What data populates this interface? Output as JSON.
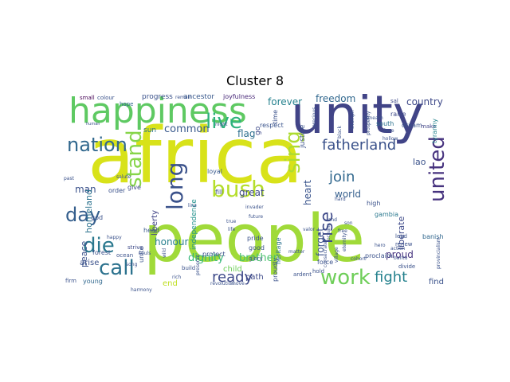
{
  "figure": {
    "title": "Cluster 8"
  },
  "wordcloud": {
    "words": [
      {
        "text": "africa",
        "color": "#d8e219"
      },
      {
        "text": "people",
        "color": "#a0da39"
      },
      {
        "text": "unity",
        "color": "#414487"
      },
      {
        "text": "happiness",
        "color": "#5ec962"
      },
      {
        "text": "nation",
        "color": "#31688e"
      },
      {
        "text": "die",
        "color": "#2a788e"
      },
      {
        "text": "stand",
        "color": "#86d549"
      },
      {
        "text": "bush",
        "color": "#b5de2b"
      },
      {
        "text": "long",
        "color": "#3b528b"
      },
      {
        "text": "live",
        "color": "#2db27d"
      },
      {
        "text": "sing",
        "color": "#addc30"
      },
      {
        "text": "day",
        "color": "#355f8d"
      },
      {
        "text": "call",
        "color": "#2c728e"
      },
      {
        "text": "united",
        "color": "#46327e"
      },
      {
        "text": "work",
        "color": "#6ece58"
      },
      {
        "text": "fight",
        "color": "#26828e"
      },
      {
        "text": "ready",
        "color": "#3e4a89"
      },
      {
        "text": "rise",
        "color": "#3e4989"
      },
      {
        "text": "join",
        "color": "#31688e"
      },
      {
        "text": "fatherland",
        "color": "#3b528b"
      },
      {
        "text": "dignity",
        "color": "#35b779"
      },
      {
        "text": "brother",
        "color": "#4ac16d"
      },
      {
        "text": "country",
        "color": "#3e4989"
      },
      {
        "text": "freedom",
        "color": "#31688e"
      },
      {
        "text": "forever",
        "color": "#26828e"
      },
      {
        "text": "common",
        "color": "#38598c"
      },
      {
        "text": "flag",
        "color": "#2e6f8e"
      },
      {
        "text": "honour",
        "color": "#277f8e"
      },
      {
        "text": "man",
        "color": "#3b528b"
      },
      {
        "text": "great",
        "color": "#3e4a89"
      },
      {
        "text": "heart",
        "color": "#3a548c"
      },
      {
        "text": "world",
        "color": "#355f8d"
      },
      {
        "text": "forget",
        "color": "#3b528b"
      },
      {
        "text": "proud",
        "color": "#46337f"
      },
      {
        "text": "lao",
        "color": "#3b528b"
      },
      {
        "text": "liberate",
        "color": "#3e4a89"
      },
      {
        "text": "peace",
        "color": "#3b528b"
      },
      {
        "text": "homeland",
        "color": "#2c728e"
      },
      {
        "text": "arise",
        "color": "#3b528b"
      },
      {
        "text": "liberty",
        "color": "#414487"
      },
      {
        "text": "child",
        "color": "#6ece58"
      },
      {
        "text": "path",
        "color": "#3e4a89"
      },
      {
        "text": "end",
        "color": "#c0df25"
      },
      {
        "text": "find",
        "color": "#3b528b"
      },
      {
        "text": "banish",
        "color": "#31688e"
      },
      {
        "text": "independence",
        "color": "#21918c"
      },
      {
        "text": "sun",
        "color": "#2c728e"
      },
      {
        "text": "progress",
        "color": "#3b528b"
      },
      {
        "text": "ancestor",
        "color": "#38598c"
      },
      {
        "text": "joyfulness",
        "color": "#482878"
      },
      {
        "text": "hope",
        "color": "#31688e"
      },
      {
        "text": "colour",
        "color": "#3b528b"
      },
      {
        "text": "small",
        "color": "#440154"
      },
      {
        "text": "loyal",
        "color": "#38598c"
      },
      {
        "text": "go",
        "color": "#3e4989"
      },
      {
        "text": "time",
        "color": "#3b528b"
      },
      {
        "text": "respect",
        "color": "#3a548c"
      },
      {
        "text": "justice",
        "color": "#3b528b"
      },
      {
        "text": "raise",
        "color": "#3e4a89"
      },
      {
        "text": "south",
        "color": "#2c728e"
      },
      {
        "text": "dream",
        "color": "#3b528b"
      },
      {
        "text": "sal",
        "color": "#3e4a89"
      },
      {
        "text": "make",
        "color": "#414487"
      },
      {
        "text": "tyranny",
        "color": "#25848e"
      },
      {
        "text": "order",
        "color": "#3b528b"
      },
      {
        "text": "give",
        "color": "#3e4a89"
      },
      {
        "text": "salute",
        "color": "#3b528b"
      },
      {
        "text": "fill",
        "color": "#3b528b"
      },
      {
        "text": "high",
        "color": "#3b528b"
      },
      {
        "text": "gambia",
        "color": "#2a788e"
      },
      {
        "text": "god",
        "color": "#3b528b"
      },
      {
        "text": "head",
        "color": "#38598c"
      },
      {
        "text": "forest",
        "color": "#3b528b"
      },
      {
        "text": "strive",
        "color": "#3e4a89"
      },
      {
        "text": "ocean",
        "color": "#3b528b"
      },
      {
        "text": "unite",
        "color": "#3b528b"
      },
      {
        "text": "young",
        "color": "#31688e"
      },
      {
        "text": "firm",
        "color": "#3b528b"
      },
      {
        "text": "protect",
        "color": "#3b528b"
      },
      {
        "text": "pride",
        "color": "#3b528b"
      },
      {
        "text": "good",
        "color": "#3b528b"
      },
      {
        "text": "glory",
        "color": "#3b528b"
      },
      {
        "text": "heritage",
        "color": "#2c728e"
      },
      {
        "text": "build",
        "color": "#3b528b"
      },
      {
        "text": "proudly",
        "color": "#3b528b"
      },
      {
        "text": "ardent",
        "color": "#3b528b"
      },
      {
        "text": "force",
        "color": "#3b528b"
      },
      {
        "text": "hold",
        "color": "#3b528b"
      },
      {
        "text": "proclaim",
        "color": "#3b528b"
      },
      {
        "text": "lead",
        "color": "#3b528b"
      },
      {
        "text": "renew",
        "color": "#3b528b"
      },
      {
        "text": "action",
        "color": "#3b528b"
      },
      {
        "text": "divide",
        "color": "#3b528b"
      },
      {
        "text": "bantu",
        "color": "#3b528b"
      },
      {
        "text": "cohort",
        "color": "#3b528b"
      },
      {
        "text": "matter",
        "color": "#3b528b"
      },
      {
        "text": "hero",
        "color": "#3b528b"
      },
      {
        "text": "son",
        "color": "#3b528b"
      },
      {
        "text": "land",
        "color": "#3b528b"
      },
      {
        "text": "move",
        "color": "#3b528b"
      },
      {
        "text": "revolution",
        "color": "#3b528b"
      },
      {
        "text": "true",
        "color": "#3b528b"
      },
      {
        "text": "life",
        "color": "#3b528b"
      },
      {
        "text": "line",
        "color": "#3b528b"
      },
      {
        "text": "future",
        "color": "#3b528b"
      },
      {
        "text": "invader",
        "color": "#3b528b"
      },
      {
        "text": "souls",
        "color": "#3b528b"
      },
      {
        "text": "song",
        "color": "#3b528b"
      },
      {
        "text": "rich",
        "color": "#3b528b"
      },
      {
        "text": "past",
        "color": "#3b528b"
      },
      {
        "text": "happy",
        "color": "#3b528b"
      },
      {
        "text": "oceans",
        "color": "#3b528b"
      },
      {
        "text": "village",
        "color": "#3b528b"
      },
      {
        "text": "eternity",
        "color": "#3b528b"
      },
      {
        "text": "beneath",
        "color": "#3b528b"
      },
      {
        "text": "love",
        "color": "#3b528b"
      },
      {
        "text": "hollow",
        "color": "#3b528b"
      },
      {
        "text": "prosperity",
        "color": "#3b528b"
      },
      {
        "text": "triumph",
        "color": "#3b528b"
      },
      {
        "text": "black",
        "color": "#3b528b"
      },
      {
        "text": "today",
        "color": "#3b528b"
      },
      {
        "text": "valor",
        "color": "#3b528b"
      },
      {
        "text": "free",
        "color": "#3b528b"
      },
      {
        "text": "hard",
        "color": "#3b528b"
      },
      {
        "text": "night",
        "color": "#3b528b"
      },
      {
        "text": "human",
        "color": "#3b528b"
      },
      {
        "text": "wild",
        "color": "#3b528b"
      },
      {
        "text": "preserve",
        "color": "#3b528b"
      },
      {
        "text": "consecrate",
        "color": "#3b528b"
      },
      {
        "text": "precious",
        "color": "#3b528b"
      },
      {
        "text": "provincialism",
        "color": "#3b528b"
      },
      {
        "text": "harmony",
        "color": "#3b528b"
      },
      {
        "text": "remain",
        "color": "#3b528b"
      }
    ]
  }
}
